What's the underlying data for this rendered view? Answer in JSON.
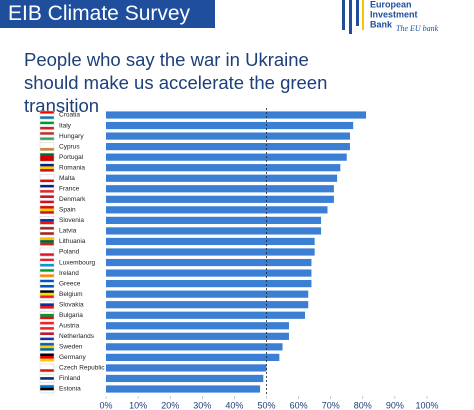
{
  "header": {
    "title": "EIB Climate Survey",
    "logo_lines": [
      "European",
      "Investment",
      "Bank"
    ],
    "tagline": "The EU bank"
  },
  "chart_data": {
    "type": "hbar",
    "title": "People who say the war in Ukraine should make us accelerate the green transition",
    "categories": [
      "Croatia",
      "Italy",
      "Hungary",
      "Cyprus",
      "Portugal",
      "Romania",
      "Malta",
      "France",
      "Denmark",
      "Spain",
      "Slovenia",
      "Latvia",
      "Lithuania",
      "Poland",
      "Luxembourg",
      "Ireland",
      "Greece",
      "Belgium",
      "Slovakia",
      "Bulgaria",
      "Austria",
      "Netherlands",
      "Sweden",
      "Germany",
      "Czech Republic",
      "Finland",
      "Estonia"
    ],
    "values": [
      81,
      77,
      76,
      76,
      75,
      73,
      72,
      71,
      71,
      69,
      67,
      67,
      65,
      65,
      64,
      64,
      64,
      63,
      63,
      62,
      57,
      57,
      55,
      54,
      50,
      49,
      48
    ],
    "color": "#3a7fd4",
    "xlim": [
      0,
      100
    ],
    "xticks": [
      {
        "value": 0,
        "label": "0%"
      },
      {
        "value": 10,
        "label": "10%"
      },
      {
        "value": 20,
        "label": "20%"
      },
      {
        "value": 30,
        "label": "30%"
      },
      {
        "value": 40,
        "label": "40%"
      },
      {
        "value": 50,
        "label": "50%"
      },
      {
        "value": 60,
        "label": "60%"
      },
      {
        "value": 70,
        "label": "70%"
      },
      {
        "value": 80,
        "label": "80%"
      },
      {
        "value": 90,
        "label": "90%"
      },
      {
        "value": 100,
        "label": "100%"
      }
    ],
    "reference_line": 50
  }
}
